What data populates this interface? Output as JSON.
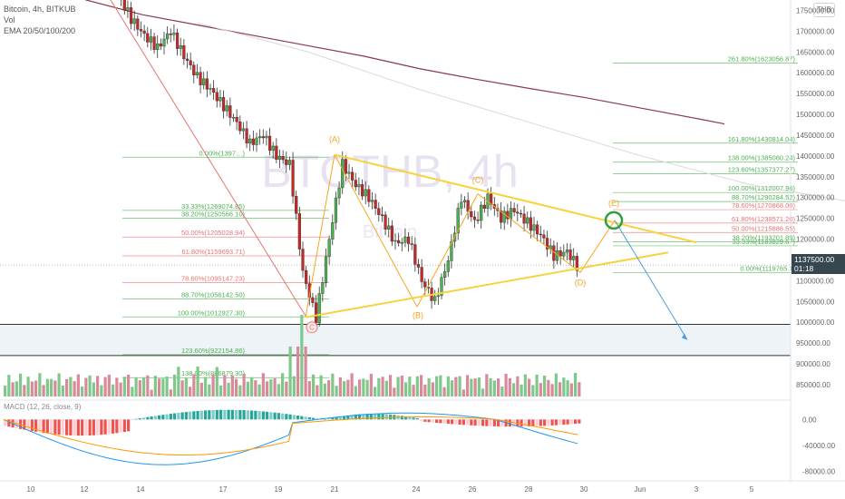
{
  "header": {
    "symbol_line": "Bitcoin, 4h, BITKUB",
    "vol_label": "Vol",
    "ema_label": "EMA 20/50/100/200",
    "currency_badge": "THB"
  },
  "watermark": {
    "main": "BTCTHB, 4h",
    "sub": "Bitcoin"
  },
  "price_badge": {
    "price": "1137500.00",
    "countdown": "01:18"
  },
  "wave_labels": [
    "C",
    "(A)",
    "(B)",
    "(C)",
    "(D)",
    "(E)"
  ],
  "fib_left": [
    {
      "label": "0.00%(1397…)",
      "color": "#4caf50"
    },
    {
      "label": "33.33%(1269074.85)",
      "color": "#4caf50"
    },
    {
      "label": "38.20%(1250566.10)",
      "color": "#4caf50"
    },
    {
      "label": "50.00%(1205028.94)",
      "color": "#e57373"
    },
    {
      "label": "61.80%(1159693.71)",
      "color": "#e57373"
    },
    {
      "label": "78.60%(1095147.23)",
      "color": "#e57373"
    },
    {
      "label": "88.70%(1056142.50)",
      "color": "#4caf50"
    },
    {
      "label": "100.00%(1012927.30)",
      "color": "#4caf50"
    },
    {
      "label": "123.60%(922154.86)",
      "color": "#4caf50"
    },
    {
      "label": "138.00%(866879.30)",
      "color": "#4caf50"
    }
  ],
  "fib_right": [
    {
      "label": "261.80%(1623056.87)",
      "color": "#4caf50"
    },
    {
      "label": "161.80%(1430814.04)",
      "color": "#4caf50"
    },
    {
      "label": "138.00%(1385060.24)",
      "color": "#4caf50"
    },
    {
      "label": "123.60%(1357377.27)",
      "color": "#4caf50"
    },
    {
      "label": "100.00%(1312007.96)",
      "color": "#4caf50"
    },
    {
      "label": "88.70%(1290284.52)",
      "color": "#4caf50"
    },
    {
      "label": "78.60%(1270868.00)",
      "color": "#e57373"
    },
    {
      "label": "61.80%(1238571.20)",
      "color": "#e57373"
    },
    {
      "label": "50.00%(1215886.55)",
      "color": "#e57373"
    },
    {
      "label": "38.20%(1193201.89)",
      "color": "#4caf50"
    },
    {
      "label": "33.33%(1183829.67)",
      "color": "#4caf50"
    },
    {
      "label": "0.00%(1119765.1)",
      "color": "#4caf50"
    }
  ],
  "macd_label": "MACD (12, 26, close, 9)",
  "chart_data": {
    "type": "candlestick",
    "title": "Bitcoin, 4h, BITKUB",
    "y_axis_ticks": [
      "1750000.00",
      "1700000.00",
      "1650000.00",
      "1600000.00",
      "1550000.00",
      "1500000.00",
      "1450000.00",
      "1400000.00",
      "1350000.00",
      "1300000.00",
      "1250000.00",
      "1200000.00",
      "1150000.00",
      "1100000.00",
      "1050000.00",
      "1000000.00",
      "950000.00",
      "900000.00",
      "850000.00"
    ],
    "macd_axis_ticks": [
      "0.00",
      "-40000.00",
      "-80000.00"
    ],
    "x_axis_ticks": [
      "10",
      "12",
      "14",
      "17",
      "19",
      "21",
      "24",
      "26",
      "28",
      "30",
      "Jun",
      "3",
      "5"
    ],
    "ylim": [
      815000,
      1775000
    ],
    "macd_ylim": [
      -95000,
      30000
    ],
    "last_price": 1137500,
    "grid": false,
    "support_zone": [
      920000,
      995000
    ],
    "series": [
      {
        "name": "EMA 200",
        "color": "#8b3a4a",
        "points": [
          [
            0.5,
            1800000
          ],
          [
            1,
            1775000
          ],
          [
            2,
            1740000
          ],
          [
            3,
            1715000
          ],
          [
            4,
            1690000
          ],
          [
            5,
            1665000
          ],
          [
            6,
            1640000
          ],
          [
            7,
            1610000
          ],
          [
            8,
            1585000
          ],
          [
            9,
            1562000
          ],
          [
            10,
            1540000
          ],
          [
            11,
            1515000
          ],
          [
            12,
            1490000
          ],
          [
            12.5,
            1477000
          ]
        ]
      },
      {
        "name": "EMA 100",
        "color": "#d9d9d9",
        "points": [
          [
            3,
            1720000
          ],
          [
            5,
            1650000
          ],
          [
            7,
            1560000
          ],
          [
            9,
            1480000
          ],
          [
            11,
            1400000
          ],
          [
            13,
            1330000
          ],
          [
            15,
            1285000
          ],
          [
            17,
            1255000
          ],
          [
            19,
            1232000
          ],
          [
            21,
            1215000
          ],
          [
            23,
            1200000
          ],
          [
            25,
            1192000
          ],
          [
            27,
            1190000
          ],
          [
            28,
            1188000
          ]
        ]
      }
    ],
    "wave_points": [
      {
        "label": "C",
        "x": 4.8,
        "y": 1012000
      },
      {
        "label": "(A)",
        "x": 5.8,
        "y": 1403000
      },
      {
        "label": "(B)",
        "x": 9.3,
        "y": 1037000
      },
      {
        "label": "(C)",
        "x": 10.4,
        "y": 1309000
      },
      {
        "label": "(D)",
        "x": 12.2,
        "y": 1119765
      },
      {
        "label": "(E)",
        "x": 13.1,
        "y": 1245000
      }
    ],
    "trendlines": [
      {
        "name": "upper",
        "from": [
          5.8,
          1403000
        ],
        "to": [
          14.7,
          1192000
        ]
      },
      {
        "name": "lower",
        "from": [
          4.8,
          1012000
        ],
        "to": [
          14.6,
          1168000
        ]
      }
    ],
    "arrow": {
      "from": [
        13.1,
        1245000
      ],
      "to": [
        14.6,
        958000
      ]
    },
    "volume_approx": "bars mixed green/red, spike near day 20",
    "macd_histogram_approx": "negative red bars early, positive teal mid, negative late"
  }
}
